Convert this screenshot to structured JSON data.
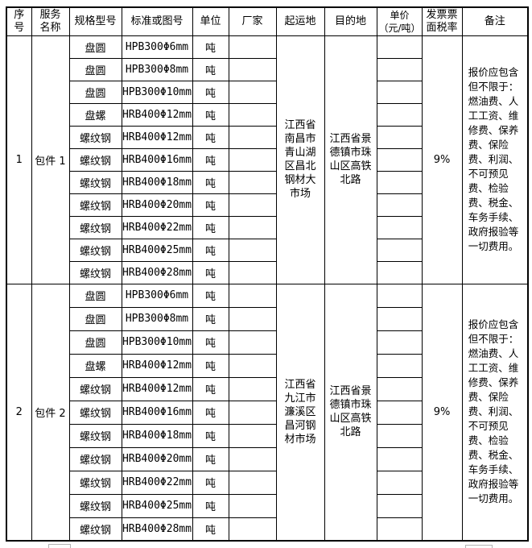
{
  "page": {
    "background_color": "#ffffff",
    "table_border_color": "#000000",
    "fragment_border_color": "#b4b4b4"
  },
  "headers": [
    "序\n号",
    "服务\n名称",
    "规格型号",
    "标准或图号",
    "单位",
    "厂家",
    "起运地",
    "目的地",
    "单价\n（元/吨）",
    "发票票\n面税率",
    "备注"
  ],
  "packages": [
    {
      "seq": "1",
      "name": "包件 1",
      "origin": "江西省南昌市青山湖区昌北钢材大市场",
      "destination": "江西省景德镇市珠山区高铁北路",
      "tax_rate": "9%",
      "remarks": "报价应包含但不限于：燃油费、人工工资、维修费、保养费、保险费、利润、不可预见费、检验费、税金、车务手续、政府报验等一切费用。",
      "rows": [
        {
          "spec": "盘圆",
          "standard": "HPB300Φ6mm",
          "unit": "吨",
          "vendor": "",
          "price": ""
        },
        {
          "spec": "盘圆",
          "standard": "HPB300Φ8mm",
          "unit": "吨",
          "vendor": "",
          "price": ""
        },
        {
          "spec": "盘圆",
          "standard": "HPB300Φ10mm",
          "unit": "吨",
          "vendor": "",
          "price": ""
        },
        {
          "spec": "盘螺",
          "standard": "HRB400Φ12mm",
          "unit": "吨",
          "vendor": "",
          "price": ""
        },
        {
          "spec": "螺纹钢",
          "standard": "HRB400Φ12mm",
          "unit": "吨",
          "vendor": "",
          "price": ""
        },
        {
          "spec": "螺纹钢",
          "standard": "HRB400Φ16mm",
          "unit": "吨",
          "vendor": "",
          "price": ""
        },
        {
          "spec": "螺纹钢",
          "standard": "HRB400Φ18mm",
          "unit": "吨",
          "vendor": "",
          "price": ""
        },
        {
          "spec": "螺纹钢",
          "standard": "HRB400Φ20mm",
          "unit": "吨",
          "vendor": "",
          "price": ""
        },
        {
          "spec": "螺纹钢",
          "standard": "HRB400Φ22mm",
          "unit": "吨",
          "vendor": "",
          "price": ""
        },
        {
          "spec": "螺纹钢",
          "standard": "HRB400Φ25mm",
          "unit": "吨",
          "vendor": "",
          "price": ""
        },
        {
          "spec": "螺纹钢",
          "standard": "HRB400Φ28mm",
          "unit": "吨",
          "vendor": "",
          "price": ""
        }
      ]
    },
    {
      "seq": "2",
      "name": "包件 2",
      "origin": "江西省九江市濂溪区昌河钢材市场",
      "destination": "江西省景德镇市珠山区高铁北路",
      "tax_rate": "9%",
      "remarks": "报价应包含但不限于：燃油费、人工工资、维修费、保养费、保险费、利润、不可预见费、检验费、税金、车务手续、政府报验等一切费用。",
      "rows": [
        {
          "spec": "盘圆",
          "standard": "HPB300Φ6mm",
          "unit": "吨",
          "vendor": "",
          "price": ""
        },
        {
          "spec": "盘圆",
          "standard": "HPB300Φ8mm",
          "unit": "吨",
          "vendor": "",
          "price": ""
        },
        {
          "spec": "盘圆",
          "standard": "HPB300Φ10mm",
          "unit": "吨",
          "vendor": "",
          "price": ""
        },
        {
          "spec": "盘螺",
          "standard": "HRB400Φ12mm",
          "unit": "吨",
          "vendor": "",
          "price": ""
        },
        {
          "spec": "螺纹钢",
          "standard": "HRB400Φ12mm",
          "unit": "吨",
          "vendor": "",
          "price": ""
        },
        {
          "spec": "螺纹钢",
          "standard": "HRB400Φ16mm",
          "unit": "吨",
          "vendor": "",
          "price": ""
        },
        {
          "spec": "螺纹钢",
          "standard": "HRB400Φ18mm",
          "unit": "吨",
          "vendor": "",
          "price": ""
        },
        {
          "spec": "螺纹钢",
          "standard": "HRB400Φ20mm",
          "unit": "吨",
          "vendor": "",
          "price": ""
        },
        {
          "spec": "螺纹钢",
          "standard": "HRB400Φ22mm",
          "unit": "吨",
          "vendor": "",
          "price": ""
        },
        {
          "spec": "螺纹钢",
          "standard": "HRB400Φ25mm",
          "unit": "吨",
          "vendor": "",
          "price": ""
        },
        {
          "spec": "螺纹钢",
          "standard": "HRB400Φ28mm",
          "unit": "吨",
          "vendor": "",
          "price": ""
        }
      ]
    }
  ]
}
